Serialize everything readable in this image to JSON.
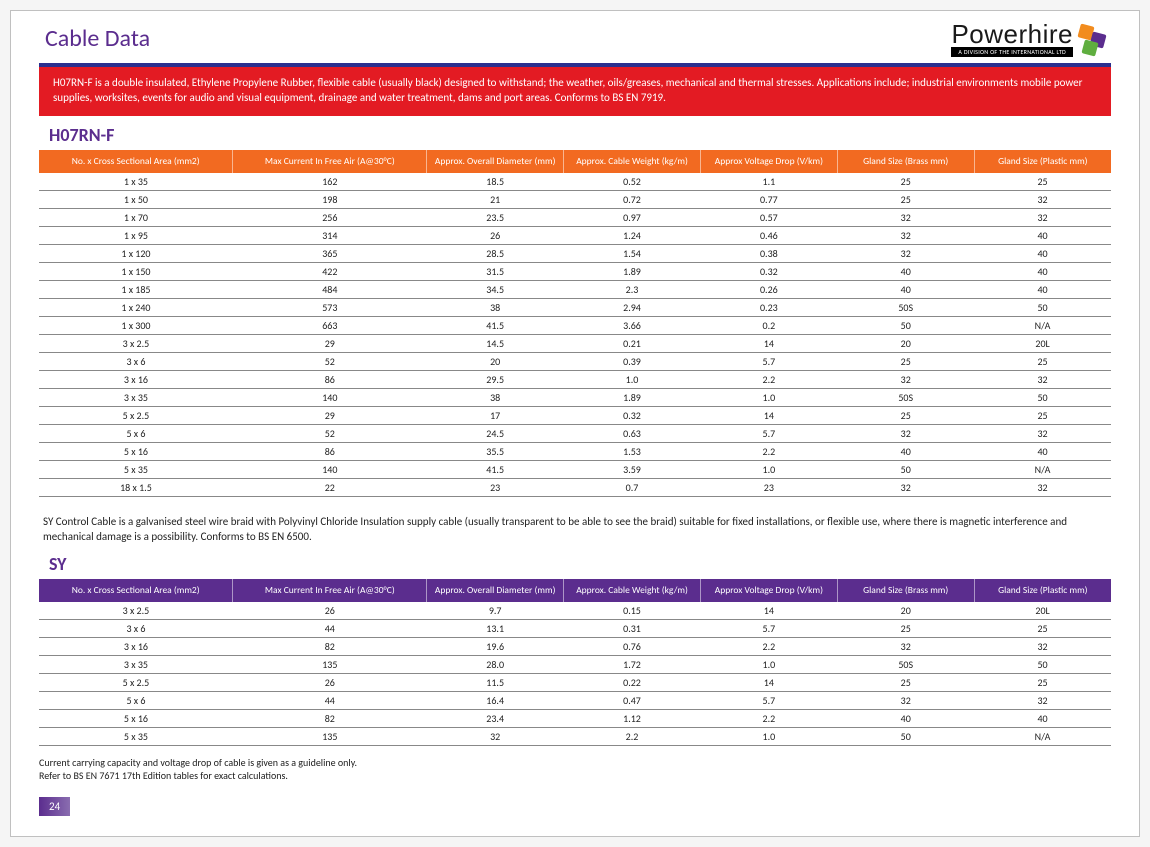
{
  "page": {
    "title": "Cable Data",
    "logo_text": "Powerhire",
    "logo_sub": "A DIVISION OF THE INTERNATIONAL LTD",
    "page_number": "24"
  },
  "intro": "H07RN-F is a double insulated, Ethylene Propylene Rubber, flexible cable (usually black) designed to withstand; the weather, oils/greases, mechanical and thermal stresses. Applications include; industrial environments mobile power supplies, worksites, events for audio and visual equipment, drainage and water treatment, dams and port areas. Conforms to BS EN 7919.",
  "columns": [
    "No. x Cross Sectional Area (mm2)",
    "Max Current In Free Air (A@30°C)",
    "Approx. Overall Diameter (mm)",
    "Approx. Cable Weight (kg/m)",
    "Approx Voltage Drop (V/km)",
    "Gland Size (Brass mm)",
    "Gland Size (Plastic mm)"
  ],
  "tables": {
    "h07": {
      "title": "H07RN-F",
      "header_bg": "#f26a21",
      "rows": [
        [
          "1 x 35",
          "162",
          "18.5",
          "0.52",
          "1.1",
          "25",
          "25"
        ],
        [
          "1 x 50",
          "198",
          "21",
          "0.72",
          "0.77",
          "25",
          "32"
        ],
        [
          "1 x 70",
          "256",
          "23.5",
          "0.97",
          "0.57",
          "32",
          "32"
        ],
        [
          "1 x 95",
          "314",
          "26",
          "1.24",
          "0.46",
          "32",
          "40"
        ],
        [
          "1 x 120",
          "365",
          "28.5",
          "1.54",
          "0.38",
          "32",
          "40"
        ],
        [
          "1 x 150",
          "422",
          "31.5",
          "1.89",
          "0.32",
          "40",
          "40"
        ],
        [
          "1 x 185",
          "484",
          "34.5",
          "2.3",
          "0.26",
          "40",
          "40"
        ],
        [
          "1 x 240",
          "573",
          "38",
          "2.94",
          "0.23",
          "50S",
          "50"
        ],
        [
          "1 x 300",
          "663",
          "41.5",
          "3.66",
          "0.2",
          "50",
          "N/A"
        ],
        [
          "3 x 2.5",
          "29",
          "14.5",
          "0.21",
          "14",
          "20",
          "20L"
        ],
        [
          "3 x 6",
          "52",
          "20",
          "0.39",
          "5.7",
          "25",
          "25"
        ],
        [
          "3 x 16",
          "86",
          "29.5",
          "1.0",
          "2.2",
          "32",
          "32"
        ],
        [
          "3 x 35",
          "140",
          "38",
          "1.89",
          "1.0",
          "50S",
          "50"
        ],
        [
          "5 x 2.5",
          "29",
          "17",
          "0.32",
          "14",
          "25",
          "25"
        ],
        [
          "5 x 6",
          "52",
          "24.5",
          "0.63",
          "5.7",
          "32",
          "32"
        ],
        [
          "5 x 16",
          "86",
          "35.5",
          "1.53",
          "2.2",
          "40",
          "40"
        ],
        [
          "5 x 35",
          "140",
          "41.5",
          "3.59",
          "1.0",
          "50",
          "N/A"
        ],
        [
          "18 x 1.5",
          "22",
          "23",
          "0.7",
          "23",
          "32",
          "32"
        ]
      ]
    },
    "sy": {
      "title": "SY",
      "desc": "SY Control Cable is a galvanised steel wire braid with Polyvinyl Chloride Insulation supply cable (usually transparent to be able to see the braid) suitable for fixed installations, or flexible use, where there is magnetic interference and mechanical damage is a possibility. Conforms to BS EN 6500.",
      "header_bg": "#5b2d8e",
      "rows": [
        [
          "3 x 2.5",
          "26",
          "9.7",
          "0.15",
          "14",
          "20",
          "20L"
        ],
        [
          "3 x 6",
          "44",
          "13.1",
          "0.31",
          "5.7",
          "25",
          "25"
        ],
        [
          "3 x 16",
          "82",
          "19.6",
          "0.76",
          "2.2",
          "32",
          "32"
        ],
        [
          "3 x 35",
          "135",
          "28.0",
          "1.72",
          "1.0",
          "50S",
          "50"
        ],
        [
          "5 x 2.5",
          "26",
          "11.5",
          "0.22",
          "14",
          "25",
          "25"
        ],
        [
          "5 x 6",
          "44",
          "16.4",
          "0.47",
          "5.7",
          "32",
          "32"
        ],
        [
          "5 x 16",
          "82",
          "23.4",
          "1.12",
          "2.2",
          "40",
          "40"
        ],
        [
          "5 x 35",
          "135",
          "32",
          "2.2",
          "1.0",
          "50",
          "N/A"
        ]
      ]
    }
  },
  "footnote": {
    "line1": "Current carrying capacity and voltage drop of cable is given as a guideline only.",
    "line2": "Refer to BS EN 7671 17th Edition tables for exact calculations."
  }
}
